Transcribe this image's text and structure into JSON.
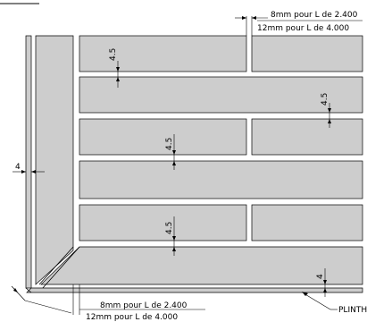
{
  "top_note": {
    "line1": "8mm pour L de 2.400",
    "line2": "12mm pour L de 4.000"
  },
  "bottom_note": {
    "line1": "8mm pour L de 2.400",
    "line2": "12mm pour L de 4.000"
  },
  "joint_labels": [
    "4.5",
    "4.5",
    "4.5",
    "4.5",
    "4"
  ],
  "left_gap_label": "4",
  "plinth_label": "PLINTH"
}
